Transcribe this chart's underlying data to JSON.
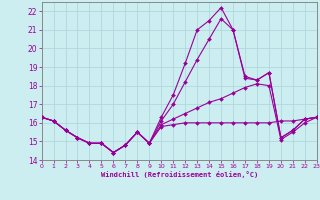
{
  "xlabel": "Windchill (Refroidissement éolien,°C)",
  "bg_color": "#cceef0",
  "grid_color": "#b0d8dc",
  "line_color": "#990099",
  "spine_color": "#888888",
  "xmin": 0,
  "xmax": 23,
  "ymin": 14,
  "ymax": 22.5,
  "xticks": [
    0,
    1,
    2,
    3,
    4,
    5,
    6,
    7,
    8,
    9,
    10,
    11,
    12,
    13,
    14,
    15,
    16,
    17,
    18,
    19,
    20,
    21,
    22,
    23
  ],
  "yticks": [
    14,
    15,
    16,
    17,
    18,
    19,
    20,
    21,
    22
  ],
  "series": [
    {
      "x": [
        0,
        1,
        2,
        3,
        4,
        5,
        6,
        7,
        8,
        9,
        10,
        11,
        12,
        13,
        14,
        15,
        16,
        17,
        18,
        19,
        20,
        21,
        22,
        23
      ],
      "y": [
        16.3,
        16.1,
        15.6,
        15.2,
        14.9,
        14.9,
        14.4,
        14.8,
        15.5,
        14.9,
        15.8,
        15.9,
        16.0,
        16.0,
        16.0,
        16.0,
        16.0,
        16.0,
        16.0,
        16.0,
        16.1,
        16.1,
        16.2,
        16.3
      ]
    },
    {
      "x": [
        0,
        1,
        2,
        3,
        4,
        5,
        6,
        7,
        8,
        9,
        10,
        11,
        12,
        13,
        14,
        15,
        16,
        17,
        18,
        19,
        20,
        21,
        22,
        23
      ],
      "y": [
        16.3,
        16.1,
        15.6,
        15.2,
        14.9,
        14.9,
        14.4,
        14.8,
        15.5,
        14.9,
        15.9,
        16.2,
        16.5,
        16.8,
        17.1,
        17.3,
        17.6,
        17.9,
        18.1,
        18.0,
        15.1,
        15.5,
        16.0,
        16.3
      ]
    },
    {
      "x": [
        0,
        1,
        2,
        3,
        4,
        5,
        6,
        7,
        8,
        9,
        10,
        11,
        12,
        13,
        14,
        15,
        16,
        17,
        18,
        19,
        20,
        21,
        22,
        23
      ],
      "y": [
        16.3,
        16.1,
        15.6,
        15.2,
        14.9,
        14.9,
        14.4,
        14.8,
        15.5,
        14.9,
        16.1,
        17.0,
        18.2,
        19.4,
        20.5,
        21.6,
        21.0,
        18.5,
        18.3,
        18.7,
        15.2,
        15.6,
        16.2,
        16.3
      ]
    },
    {
      "x": [
        0,
        1,
        2,
        3,
        4,
        5,
        6,
        7,
        8,
        9,
        10,
        11,
        12,
        13,
        14,
        15,
        16,
        17,
        18,
        19,
        20,
        21,
        22,
        23
      ],
      "y": [
        16.3,
        16.1,
        15.6,
        15.2,
        14.9,
        14.9,
        14.4,
        14.8,
        15.5,
        14.9,
        16.3,
        17.5,
        19.2,
        21.0,
        21.5,
        22.2,
        21.0,
        18.4,
        18.3,
        18.7,
        15.2,
        15.6,
        16.2,
        16.3
      ]
    }
  ]
}
